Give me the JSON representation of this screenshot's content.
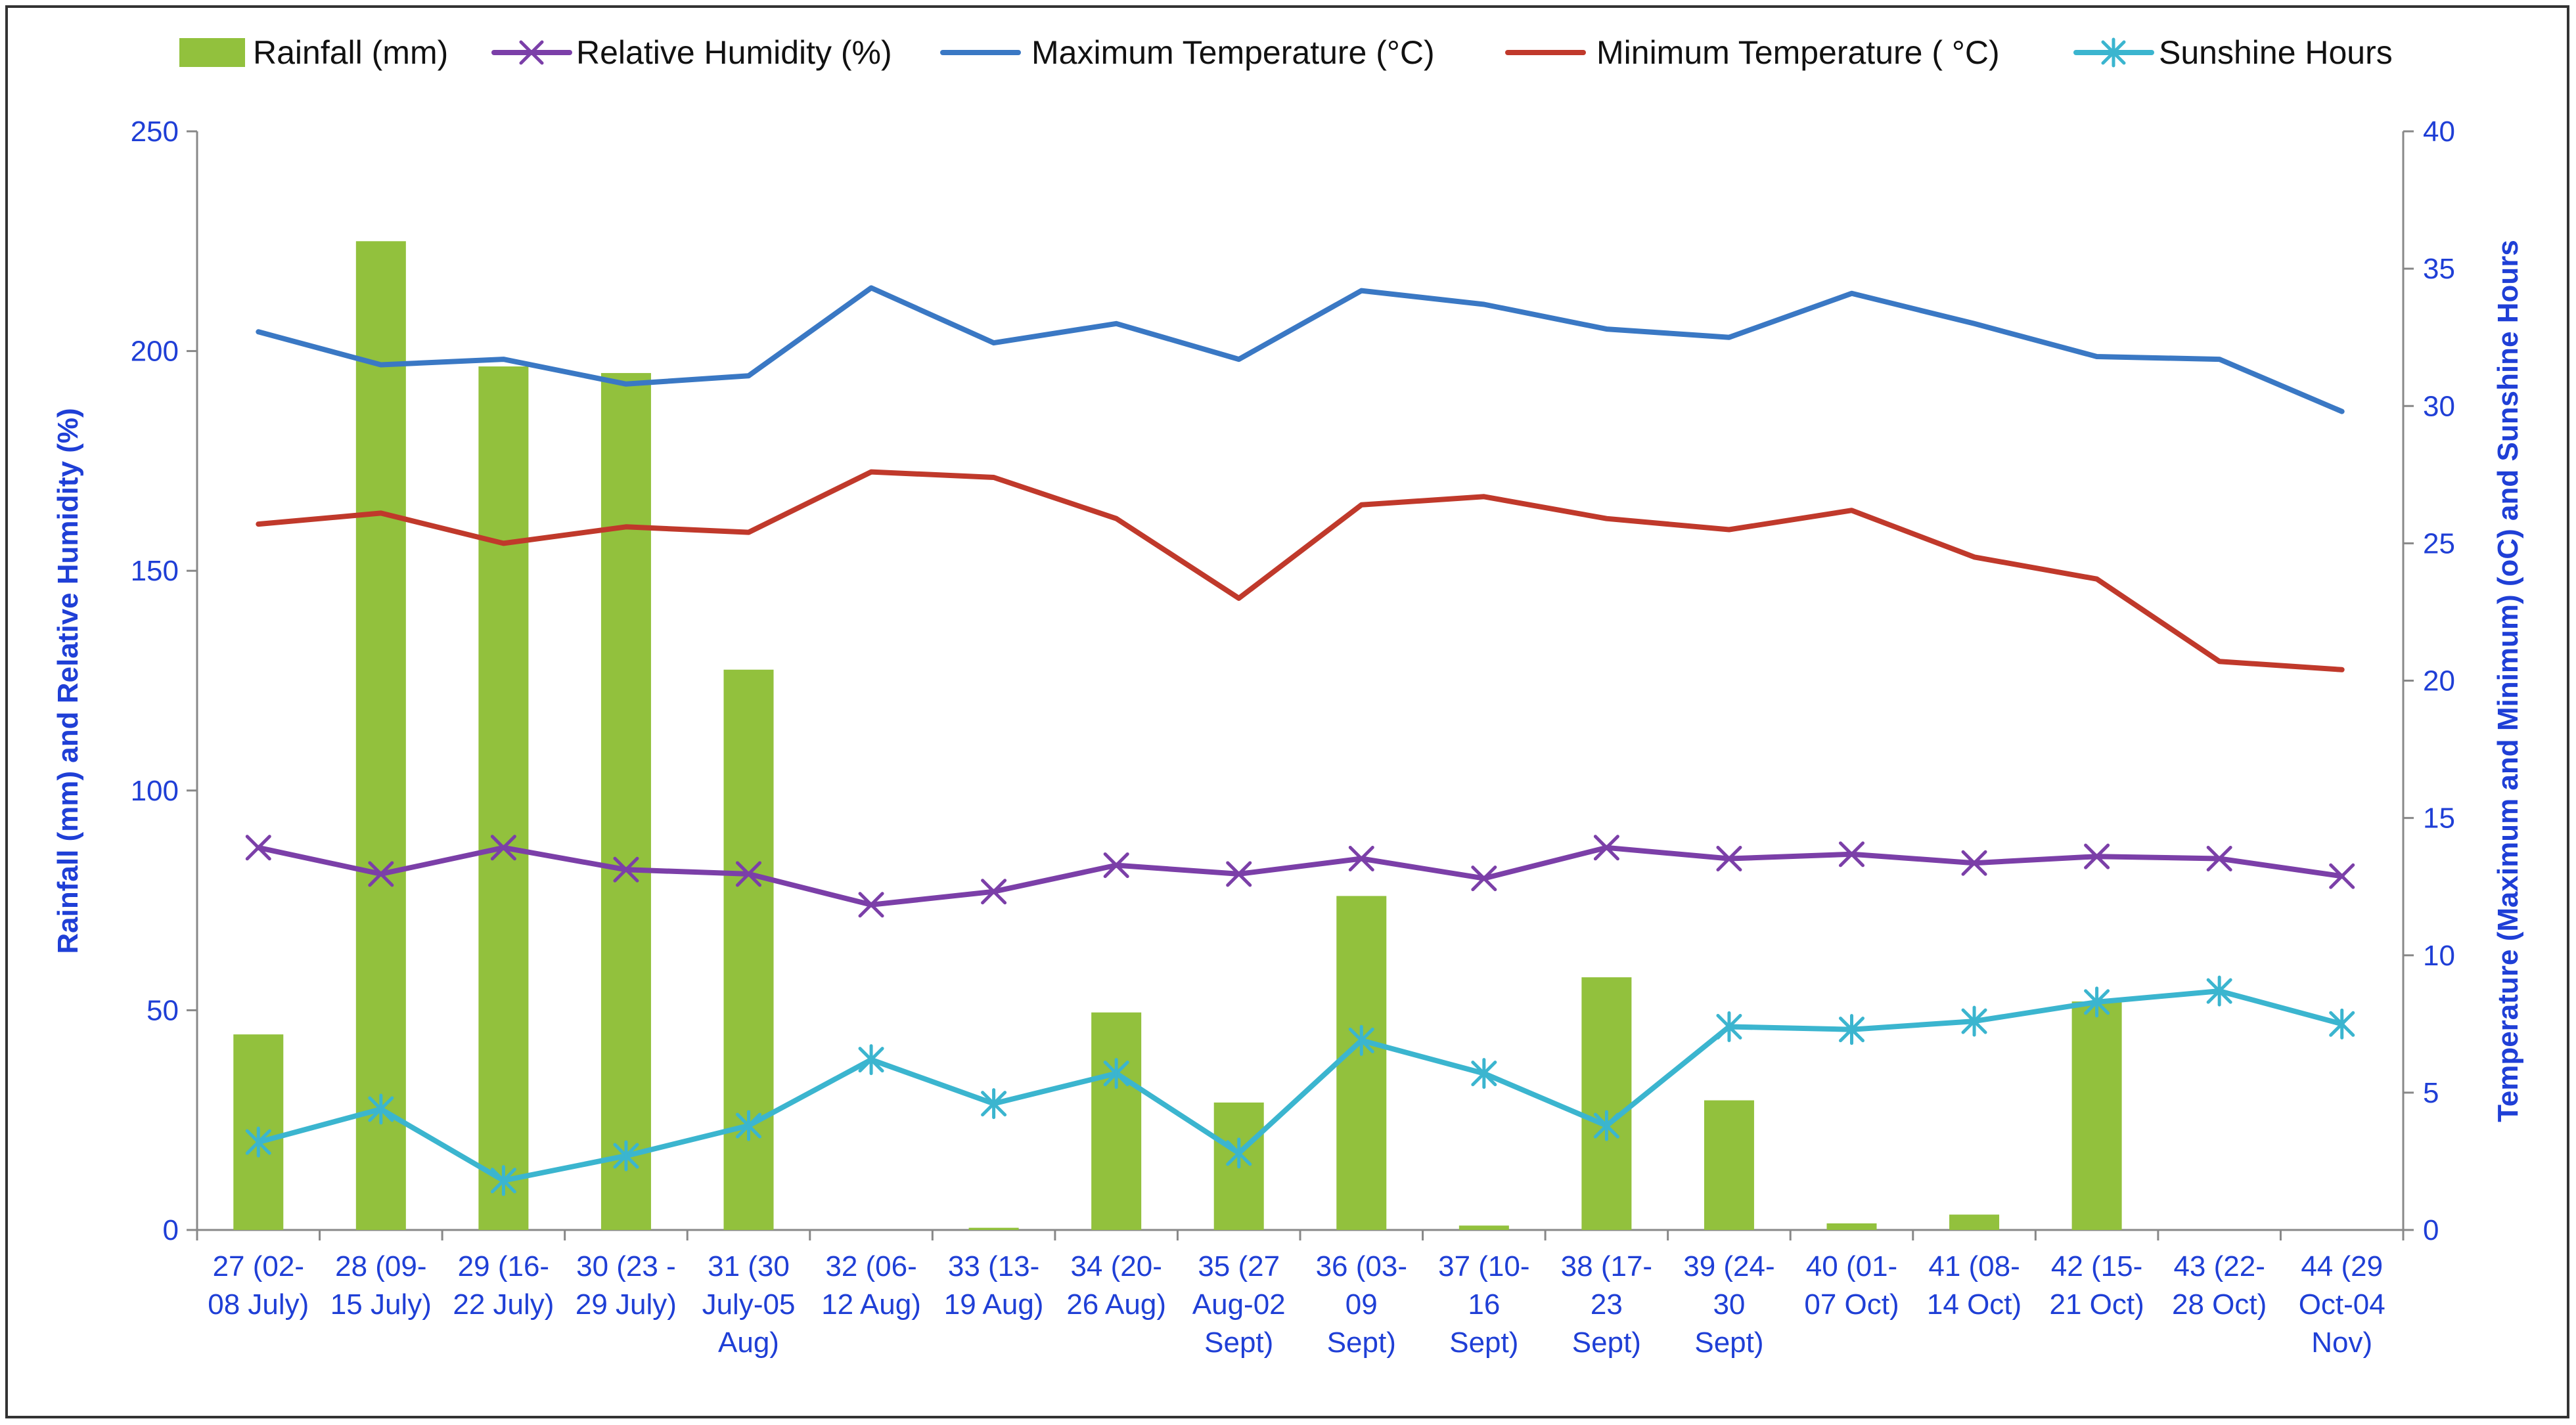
{
  "chart_data": {
    "type": "bar+line",
    "categories": [
      [
        "27 (02-",
        "08 July)"
      ],
      [
        "28 (09-",
        "15 July)"
      ],
      [
        "29 (16-",
        "22 July)"
      ],
      [
        "30 (23 -",
        "29 July)"
      ],
      [
        "31 (30",
        "July-05",
        "Aug)"
      ],
      [
        "32 (06-",
        "12 Aug)"
      ],
      [
        "33 (13-",
        "19 Aug)"
      ],
      [
        "34 (20-",
        "26 Aug)"
      ],
      [
        "35 (27",
        "Aug-02",
        "Sept)"
      ],
      [
        "36 (03-",
        "09",
        "Sept)"
      ],
      [
        "37 (10-",
        "16",
        "Sept)"
      ],
      [
        "38 (17-",
        "23",
        "Sept)"
      ],
      [
        "39 (24-",
        "30",
        "Sept)"
      ],
      [
        "40 (01-",
        "07 Oct)"
      ],
      [
        "41 (08-",
        "14 Oct)"
      ],
      [
        "42 (15-",
        "21 Oct)"
      ],
      [
        "43 (22-",
        "28 Oct)"
      ],
      [
        "44 (29",
        "Oct-04",
        "Nov)"
      ]
    ],
    "series": [
      {
        "name": "Rainfall (mm)",
        "kind": "bar",
        "axis": "left",
        "color": "#92c13d",
        "values": [
          44.5,
          225,
          196.5,
          195,
          127.5,
          0,
          0.5,
          49.5,
          29,
          76,
          1,
          57.5,
          29.5,
          1.5,
          3.5,
          52,
          0,
          0
        ]
      },
      {
        "name": "Relative Humidity (%)",
        "kind": "line",
        "axis": "left",
        "color": "#7b3fa8",
        "marker": "x",
        "values": [
          87,
          81,
          87,
          82,
          81,
          74,
          77,
          83,
          81,
          84.5,
          80,
          87,
          84.5,
          85.5,
          83.5,
          85,
          84.5,
          80.5
        ]
      },
      {
        "name": "Maximum Temperature (°C)",
        "kind": "line",
        "axis": "right",
        "color": "#3a78c4",
        "values": [
          32.7,
          31.5,
          31.7,
          30.8,
          31.1,
          34.3,
          32.3,
          33.0,
          31.7,
          34.2,
          33.7,
          32.8,
          32.5,
          34.1,
          33.0,
          31.8,
          31.7,
          29.8
        ]
      },
      {
        "name": "Minimum Temperature ( °C)",
        "kind": "line",
        "axis": "right",
        "color": "#c0392b",
        "values": [
          25.7,
          26.1,
          25.0,
          25.6,
          25.4,
          27.6,
          27.4,
          25.9,
          23.0,
          26.4,
          26.7,
          25.9,
          25.5,
          26.2,
          24.5,
          23.7,
          20.7,
          20.4
        ]
      },
      {
        "name": "Sunshine Hours",
        "kind": "line",
        "axis": "right",
        "color": "#3bb5cf",
        "marker": "asterisk",
        "values": [
          3.2,
          4.4,
          1.8,
          2.7,
          3.8,
          6.2,
          4.6,
          5.7,
          2.8,
          6.9,
          5.7,
          3.8,
          7.4,
          7.3,
          7.6,
          8.3,
          8.7,
          7.5
        ]
      }
    ],
    "ylabel": "Rainfall (mm) and Relative Humidity (%)",
    "y2label": "Temperature (Maximum and Minimum) (oC) and Sunshine Hours",
    "ylim": [
      0,
      250
    ],
    "yticks": [
      0,
      50,
      100,
      150,
      200,
      250
    ],
    "y2lim": [
      0,
      40
    ],
    "y2ticks": [
      0,
      5,
      10,
      15,
      20,
      25,
      30,
      35,
      40
    ],
    "legend_position": "top",
    "grid": false
  }
}
